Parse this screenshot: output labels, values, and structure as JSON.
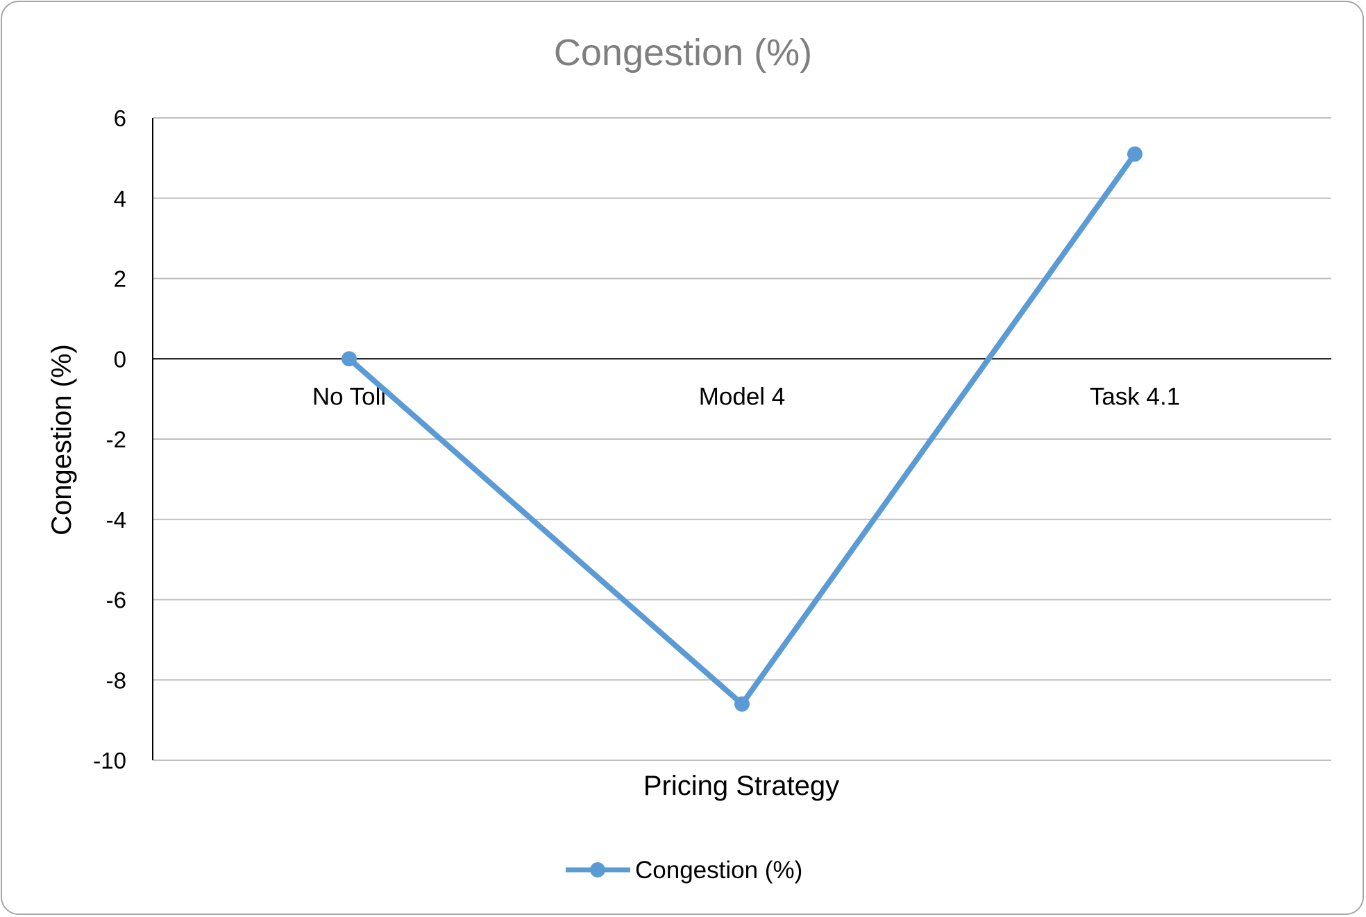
{
  "chart_data": {
    "type": "line",
    "title": "Congestion (%)",
    "xlabel": "Pricing Strategy",
    "ylabel": "Congestion (%)",
    "categories": [
      "No Toll",
      "Model 4",
      "Task 4.1"
    ],
    "series": [
      {
        "name": "Congestion (%)",
        "values": [
          0,
          -8.6,
          5.1
        ],
        "color": "#5b9bd5"
      }
    ],
    "ylim": [
      -10,
      6
    ],
    "yticks": [
      "6",
      "4",
      "2",
      "0",
      "-2",
      "-4",
      "-6",
      "-8",
      "-10"
    ],
    "grid": true,
    "legend": "bottom",
    "colors": {
      "gridline": "#bfbfbf",
      "axis": "#000000",
      "title": "#7f7f7f"
    }
  }
}
